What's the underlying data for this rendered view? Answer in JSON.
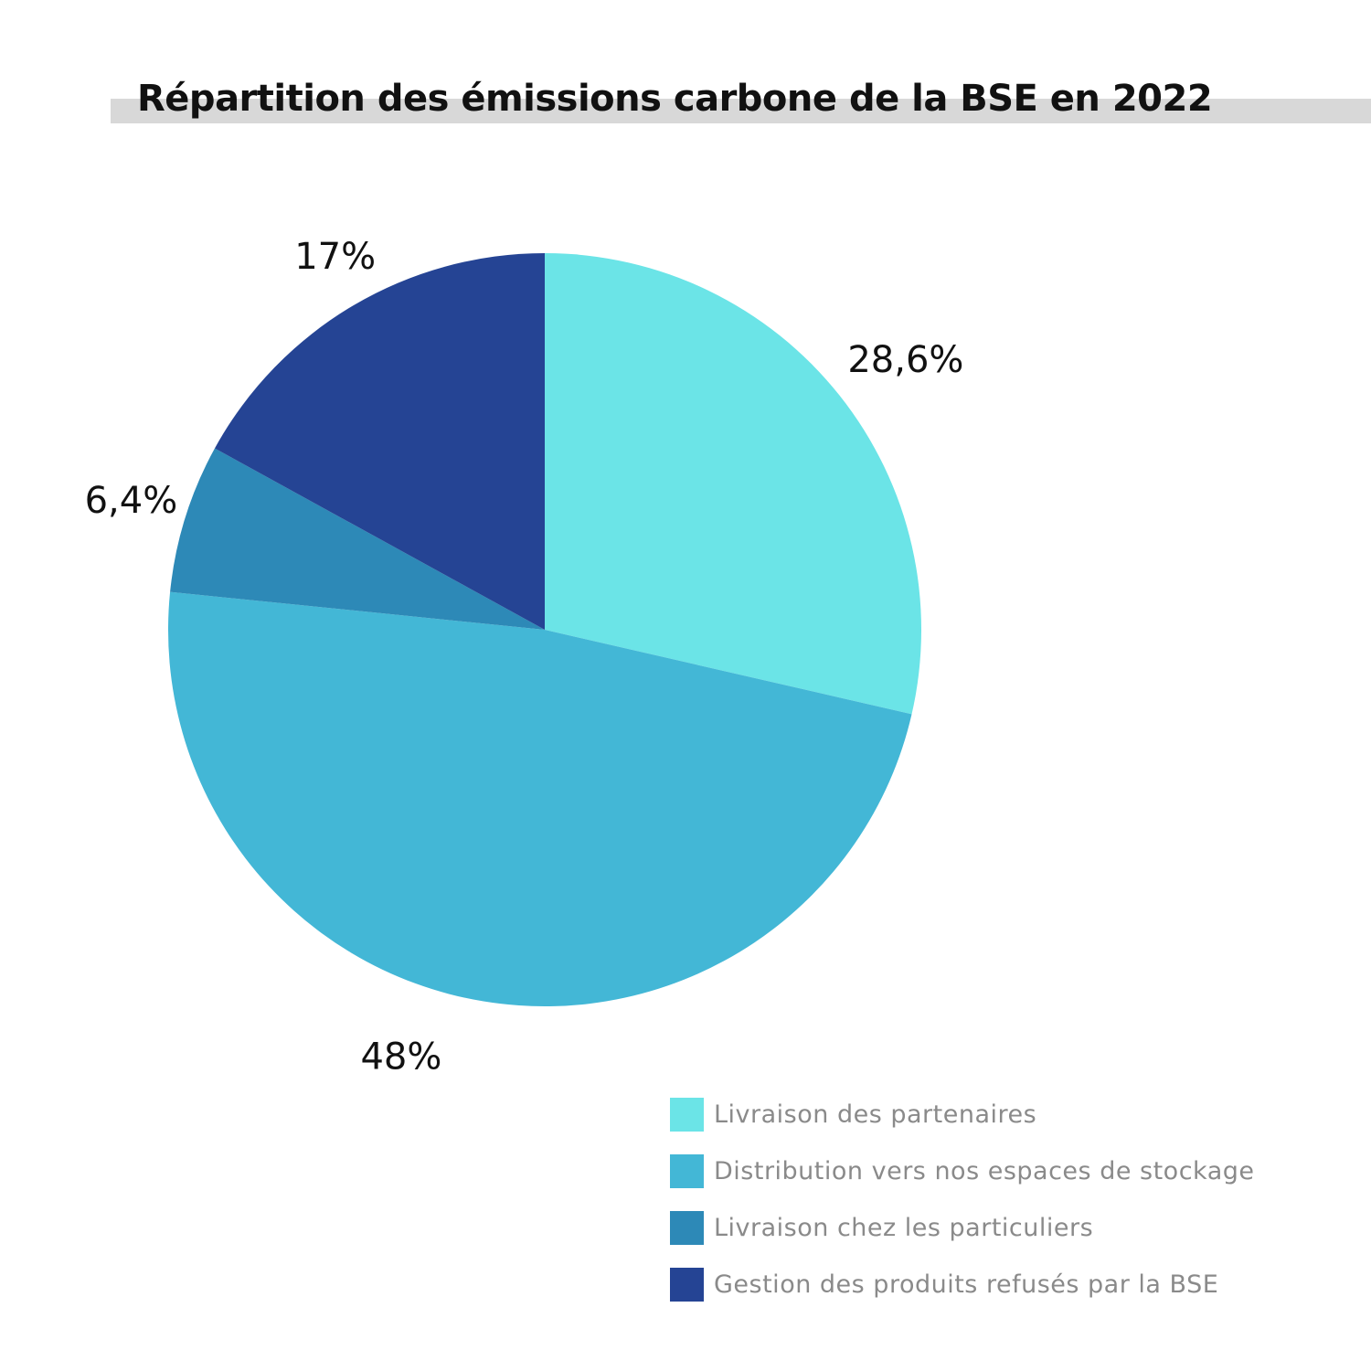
{
  "chart_data": {
    "type": "pie",
    "title": "Répartition des émissions carbone de la BSE en 2022",
    "slices": [
      {
        "label": "Livraison des partenaires",
        "value": 28.6,
        "display": "28,6%",
        "color": "#6be4e7"
      },
      {
        "label": "Distribution vers nos espaces de stockage",
        "value": 48,
        "display": "48%",
        "color": "#43b7d6"
      },
      {
        "label": "Livraison chez les particuliers",
        "value": 6.4,
        "display": "6,4%",
        "color": "#2d89b7"
      },
      {
        "label": "Gestion des produits refusés par la BSE",
        "value": 17,
        "display": "17%",
        "color": "#254494"
      }
    ],
    "start": "12 o'clock",
    "direction": "clockwise",
    "legend_position": "bottom-right"
  }
}
